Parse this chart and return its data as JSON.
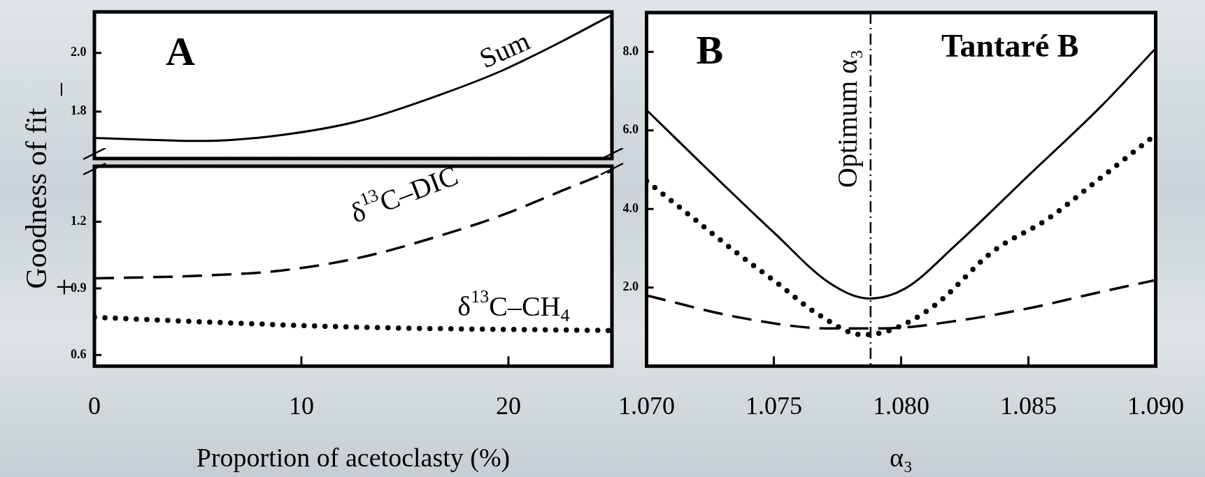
{
  "chart_data": [
    {
      "type": "line",
      "ylabel": "Goodness of fit",
      "marker": "none",
      "tick_labels": "y",
      "grid": false,
      "x": [
        0,
        5.1,
        9,
        12.9,
        16.8,
        19.7,
        22.6,
        25
      ],
      "series": [
        {
          "name": "Sum",
          "color": "#000000",
          "line_style": "solid",
          "values": [
            1.71,
            1.7,
            1.72,
            1.77,
            1.86,
            1.94,
            2.04,
            2.13
          ]
        }
      ],
      "xlim": [
        0,
        25
      ],
      "xticks": [
        0,
        10,
        20
      ],
      "ylim": [
        1.64,
        2.14
      ],
      "yticks": [
        1.8,
        {
          "value": 2,
          "label": "2.0"
        }
      ],
      "annotations": [
        "A",
        "−"
      ]
    },
    {
      "type": "line",
      "xlabel": "Proportion of acetoclasty (%)",
      "marker": "none",
      "grid": false,
      "x": [
        0,
        5.1,
        9,
        12.9,
        16.8,
        19.7,
        22.6,
        25
      ],
      "series": [
        {
          "name": "δ$^{13}$C–DIC",
          "color": "#000000",
          "line_style": "dashed",
          "values": [
            0.945,
            0.957,
            0.98,
            1.04,
            1.14,
            1.23,
            1.34,
            1.43
          ]
        },
        {
          "name": "δ$^{13}$C–CH$_{4}$",
          "color": "#000000",
          "line_style": "dotted",
          "x": [
            0,
            5,
            12.9,
            25
          ],
          "values": [
            0.77,
            0.75,
            0.725,
            0.71
          ]
        }
      ],
      "xlim": [
        0,
        25
      ],
      "xticks": [
        0,
        10,
        20
      ],
      "ylim": [
        0.55,
        1.45
      ],
      "yticks": [
        0.6,
        0.9,
        1.2
      ],
      "annotations": [
        "+"
      ]
    },
    {
      "type": "line",
      "xlabel": "α₃",
      "marker": "none",
      "grid": false,
      "series": [
        {
          "color": "#000000",
          "line_style": "solid",
          "x": [
            1.07,
            1.0722,
            1.07505,
            1.07718,
            1.07875,
            1.08017,
            1.08216,
            1.085,
            1.08785,
            1.09
          ],
          "values": [
            6.52,
            5.13,
            3.37,
            2.12,
            1.72,
            1.98,
            3.09,
            4.85,
            6.61,
            8.09
          ]
        },
        {
          "color": "#000000",
          "line_style": "dotted",
          "x": [
            1.07,
            1.07171,
            1.07341,
            1.07512,
            1.07676,
            1.07847,
            1.0796,
            1.08131,
            1.08359,
            1.08579,
            1.0875,
            1.08978
          ],
          "values": [
            4.71,
            3.83,
            2.95,
            2.12,
            1.31,
            0.8,
            0.92,
            1.54,
            2.91,
            3.76,
            4.62,
            5.78
          ]
        },
        {
          "color": "#000000",
          "line_style": "dashed",
          "x": [
            1.07,
            1.07363,
            1.07718,
            1.07932,
            1.08216,
            1.085,
            1.08785,
            1.09
          ],
          "values": [
            1.8,
            1.24,
            0.96,
            0.96,
            1.15,
            1.47,
            1.89,
            2.19
          ]
        }
      ],
      "xlim": [
        1.07,
        1.09
      ],
      "xticks": [
        {
          "value": 1.07,
          "label": "1.070"
        },
        {
          "value": 1.075,
          "label": "1.075"
        },
        {
          "value": 1.08,
          "label": "1.080"
        },
        {
          "value": 1.085,
          "label": "1.085"
        },
        {
          "value": 1.09,
          "label": "1.090"
        }
      ],
      "ylim": [
        0,
        9
      ],
      "yticks": [
        {
          "value": 2,
          "label": "2.0"
        },
        {
          "value": 4,
          "label": "4.0"
        },
        {
          "value": 6,
          "label": "6.0"
        },
        {
          "value": 8,
          "label": "8.0"
        }
      ],
      "ref_lines": [
        {
          "axis": "x",
          "value": 1.0788,
          "label": "Optimum α₃",
          "line_style": "dashdot",
          "color": "#000000"
        }
      ],
      "annotations": [
        "B",
        "Tantaré B"
      ]
    }
  ]
}
